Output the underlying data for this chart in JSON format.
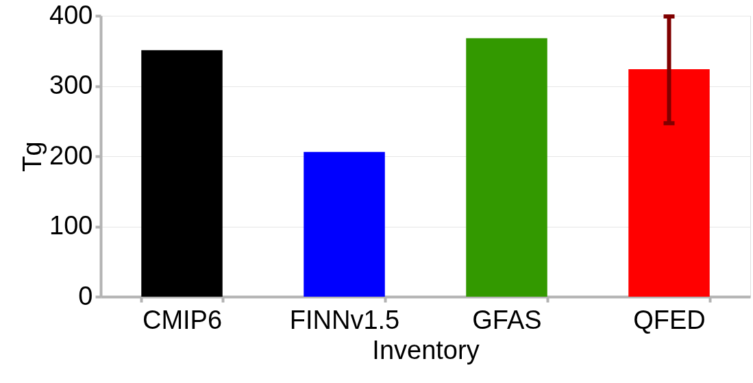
{
  "chart_data": {
    "type": "bar",
    "xlabel": "Inventory",
    "ylabel": "Tg",
    "categories": [
      "CMIP6",
      "FINNv1.5",
      "GFAS",
      "QFED"
    ],
    "values": [
      351,
      206,
      368,
      324
    ],
    "colors": [
      "#000000",
      "#0000ff",
      "#339900",
      "#ff0000"
    ],
    "errors": [
      null,
      null,
      null,
      [
        247,
        399
      ]
    ],
    "ylim": [
      0,
      400
    ],
    "yticks": [
      0,
      100,
      200,
      300,
      400
    ],
    "grid": "y"
  }
}
